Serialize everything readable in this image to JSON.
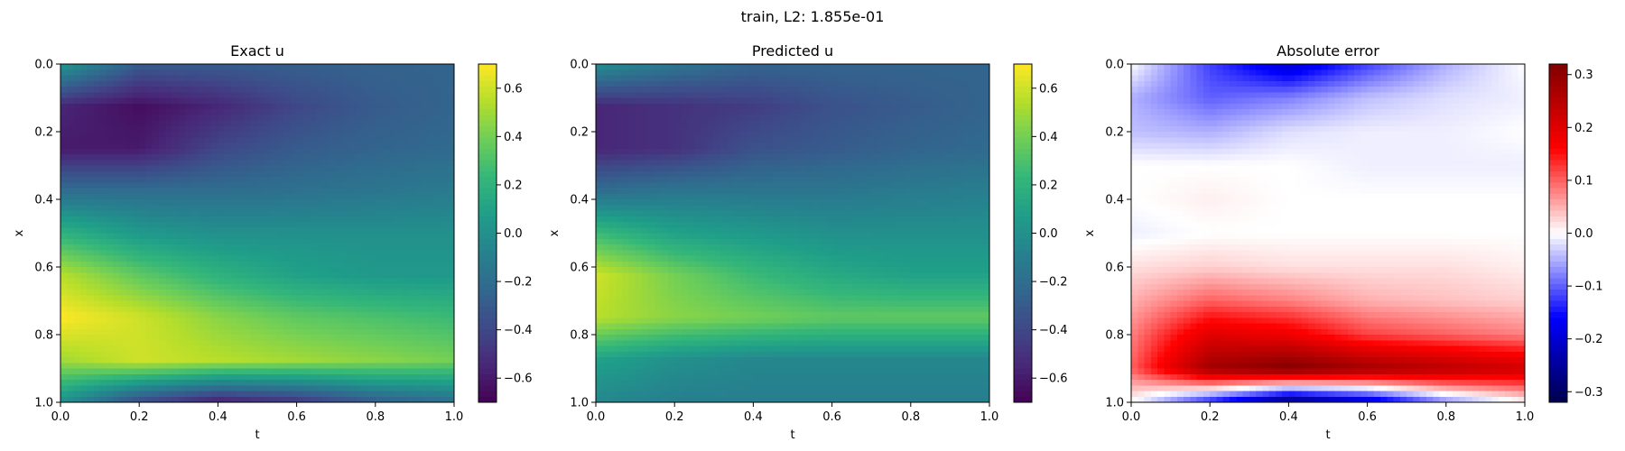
{
  "figure": {
    "title": "train, L2: 1.855e-01"
  },
  "chart_data": [
    {
      "type": "heatmap",
      "title": "Exact u",
      "xlabel": "t",
      "ylabel": "x",
      "xlim": [
        0,
        1
      ],
      "ylim": [
        0,
        1
      ],
      "y_inverted": true,
      "xticks": [
        "0.0",
        "0.2",
        "0.4",
        "0.6",
        "0.8",
        "1.0"
      ],
      "yticks": [
        "0.0",
        "0.2",
        "0.4",
        "0.6",
        "0.8",
        "1.0"
      ],
      "colormap": "viridis",
      "colorbar": {
        "range": [
          -0.7,
          0.7
        ],
        "ticks": [
          "0.6",
          "0.4",
          "0.2",
          "0.0",
          "−0.2",
          "−0.4",
          "−0.6"
        ]
      },
      "grid_rows": 9,
      "grid_cols": 6,
      "rows_x": [
        0,
        0.125,
        0.25,
        0.375,
        0.5,
        0.625,
        0.75,
        0.875,
        1.0
      ],
      "cols_t": [
        0,
        0.2,
        0.4,
        0.6,
        0.8,
        1.0
      ],
      "values": [
        [
          0.05,
          -0.3,
          -0.3,
          -0.28,
          -0.26,
          -0.25
        ],
        [
          -0.55,
          -0.65,
          -0.55,
          -0.4,
          -0.3,
          -0.25
        ],
        [
          -0.6,
          -0.6,
          -0.4,
          -0.3,
          -0.25,
          -0.22
        ],
        [
          -0.2,
          -0.2,
          -0.2,
          -0.18,
          -0.15,
          -0.12
        ],
        [
          0.2,
          0.05,
          0.0,
          0.0,
          0.0,
          0.0
        ],
        [
          0.55,
          0.35,
          0.2,
          0.1,
          0.05,
          0.05
        ],
        [
          0.7,
          0.6,
          0.45,
          0.35,
          0.3,
          0.25
        ],
        [
          0.5,
          0.6,
          0.55,
          0.5,
          0.45,
          0.4
        ],
        [
          0.0,
          -0.4,
          -0.6,
          -0.5,
          -0.3,
          -0.2
        ]
      ]
    },
    {
      "type": "heatmap",
      "title": "Predicted u",
      "xlabel": "t",
      "ylabel": "x",
      "xlim": [
        0,
        1
      ],
      "ylim": [
        0,
        1
      ],
      "y_inverted": true,
      "xticks": [
        "0.0",
        "0.2",
        "0.4",
        "0.6",
        "0.8",
        "1.0"
      ],
      "yticks": [
        "0.0",
        "0.2",
        "0.4",
        "0.6",
        "0.8",
        "1.0"
      ],
      "colormap": "viridis",
      "colorbar": {
        "range": [
          -0.7,
          0.7
        ],
        "ticks": [
          "0.6",
          "0.4",
          "0.2",
          "0.0",
          "−0.2",
          "−0.4",
          "−0.6"
        ]
      },
      "grid_rows": 9,
      "grid_cols": 6,
      "rows_x": [
        0,
        0.125,
        0.25,
        0.375,
        0.5,
        0.625,
        0.75,
        0.875,
        1.0
      ],
      "cols_t": [
        0,
        0.2,
        0.4,
        0.6,
        0.8,
        1.0
      ],
      "values": [
        [
          0.0,
          -0.15,
          -0.25,
          -0.25,
          -0.25,
          -0.25
        ],
        [
          -0.55,
          -0.5,
          -0.45,
          -0.35,
          -0.3,
          -0.25
        ],
        [
          -0.55,
          -0.5,
          -0.35,
          -0.3,
          -0.25,
          -0.22
        ],
        [
          -0.2,
          -0.15,
          -0.15,
          -0.15,
          -0.12,
          -0.1
        ],
        [
          0.25,
          0.1,
          0.05,
          0.0,
          0.0,
          0.0
        ],
        [
          0.6,
          0.4,
          0.25,
          0.15,
          0.1,
          0.1
        ],
        [
          0.55,
          0.45,
          0.4,
          0.35,
          0.35,
          0.35
        ],
        [
          0.1,
          0.0,
          -0.05,
          -0.05,
          -0.05,
          -0.05
        ],
        [
          -0.05,
          -0.1,
          -0.1,
          -0.1,
          -0.1,
          -0.1
        ]
      ]
    },
    {
      "type": "heatmap",
      "title": "Absolute error",
      "xlabel": "t",
      "ylabel": "x",
      "xlim": [
        0,
        1
      ],
      "ylim": [
        0,
        1
      ],
      "y_inverted": true,
      "xticks": [
        "0.0",
        "0.2",
        "0.4",
        "0.6",
        "0.8",
        "1.0"
      ],
      "yticks": [
        "0.0",
        "0.2",
        "0.4",
        "0.6",
        "0.8",
        "1.0"
      ],
      "colormap": "seismic",
      "colorbar": {
        "range": [
          -0.32,
          0.32
        ],
        "ticks": [
          "0.3",
          "0.2",
          "0.1",
          "0.0",
          "−0.1",
          "−0.2",
          "−0.3"
        ]
      },
      "grid_rows": 11,
      "grid_cols": 6,
      "rows_x": [
        0,
        0.1,
        0.2,
        0.3,
        0.4,
        0.5,
        0.6,
        0.7,
        0.8,
        0.9,
        1.0
      ],
      "cols_t": [
        0,
        0.2,
        0.4,
        0.6,
        0.8,
        1.0
      ],
      "values": [
        [
          0.0,
          -0.12,
          -0.2,
          -0.12,
          -0.05,
          0.0
        ],
        [
          -0.05,
          -0.1,
          -0.08,
          -0.04,
          -0.02,
          -0.01
        ],
        [
          -0.04,
          -0.05,
          -0.02,
          -0.01,
          -0.01,
          0.0
        ],
        [
          0.0,
          0.0,
          0.0,
          -0.01,
          -0.01,
          -0.01
        ],
        [
          0.0,
          0.01,
          0.0,
          0.0,
          0.0,
          0.0
        ],
        [
          -0.01,
          0.0,
          0.0,
          0.0,
          0.0,
          0.0
        ],
        [
          0.02,
          0.03,
          0.02,
          0.02,
          0.02,
          0.01
        ],
        [
          0.05,
          0.1,
          0.08,
          0.05,
          0.04,
          0.03
        ],
        [
          0.08,
          0.2,
          0.18,
          0.12,
          0.1,
          0.08
        ],
        [
          0.1,
          0.28,
          0.32,
          0.28,
          0.25,
          0.22
        ],
        [
          0.0,
          -0.15,
          -0.3,
          -0.22,
          -0.08,
          0.0
        ]
      ]
    }
  ]
}
